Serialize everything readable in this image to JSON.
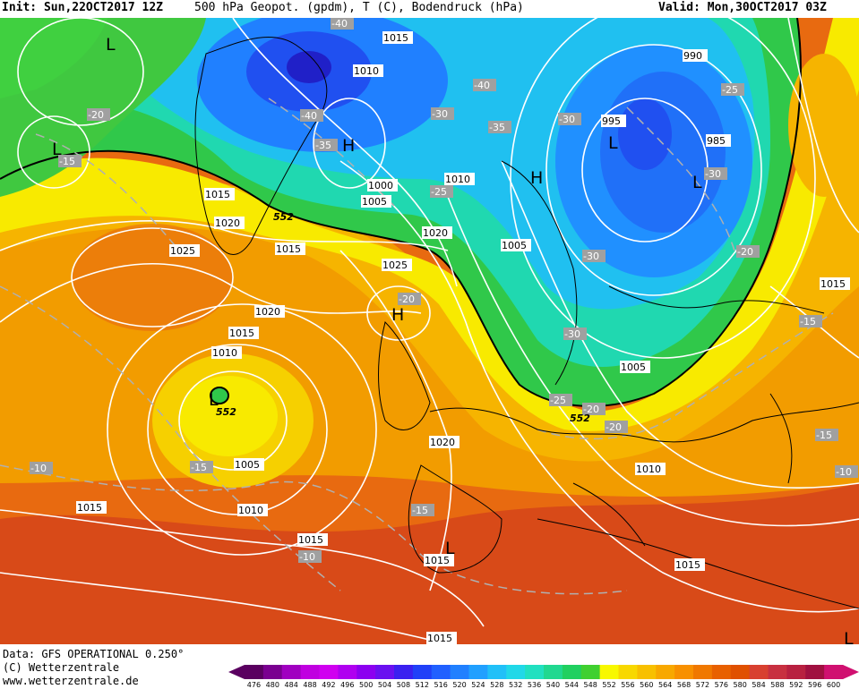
{
  "header": {
    "init": "Init: Sun,22OCT2017 12Z",
    "title": "500 hPa Geopot. (gpdm), T (C), Bodendruck (hPa)",
    "valid": "Valid: Mon,30OCT2017 03Z"
  },
  "footer": {
    "data_source": "Data: GFS OPERATIONAL 0.250°",
    "copyright": "(C) Wetterzentrale",
    "website": "www.wetterzentrale.de"
  },
  "legend": {
    "values": [
      "476",
      "480",
      "484",
      "488",
      "492",
      "496",
      "500",
      "504",
      "508",
      "512",
      "516",
      "520",
      "524",
      "528",
      "532",
      "536",
      "540",
      "544",
      "548",
      "552",
      "556",
      "560",
      "564",
      "568",
      "572",
      "576",
      "580",
      "584",
      "588",
      "592",
      "596",
      "600"
    ],
    "colors": [
      "#5a0060",
      "#7a0090",
      "#a000c0",
      "#c000e0",
      "#d000f0",
      "#b000f0",
      "#8c00f0",
      "#6a10f0",
      "#3a20f0",
      "#2040f8",
      "#2060ff",
      "#2080ff",
      "#20a0ff",
      "#20c0f8",
      "#20d8e8",
      "#20e0c0",
      "#20d890",
      "#20d060",
      "#40d030",
      "#f8f800",
      "#f8d800",
      "#f8c000",
      "#f8a800",
      "#f89000",
      "#f07800",
      "#e86000",
      "#e05000",
      "#d84030",
      "#c83040",
      "#b82040",
      "#a01040",
      "#d01070"
    ]
  },
  "isobars": [
    "1015",
    "1010",
    "1020",
    "1025",
    "1015",
    "990",
    "995",
    "985",
    "1000",
    "1005",
    "1010",
    "1020",
    "1005",
    "1025",
    "1020",
    "1015",
    "1010",
    "1005",
    "1015",
    "1020",
    "1005",
    "1010",
    "1010",
    "1015",
    "1015",
    "1015",
    "1015",
    "1015",
    "1015"
  ],
  "temperatures": [
    "-40",
    "-40",
    "-40",
    "-35",
    "-35",
    "-30",
    "-30",
    "-25",
    "-25",
    "-20",
    "-20",
    "-30",
    "-30",
    "-30",
    "-20",
    "-15",
    "-20",
    "-25",
    "-20",
    "-15",
    "-15",
    "-15",
    "-15",
    "-10",
    "-10",
    "-10"
  ],
  "pressure_centers": [
    "L",
    "L",
    "L",
    "L",
    "L",
    "H",
    "H",
    "H",
    "L",
    "L"
  ],
  "geopot_labels": [
    "552",
    "552",
    "552"
  ]
}
